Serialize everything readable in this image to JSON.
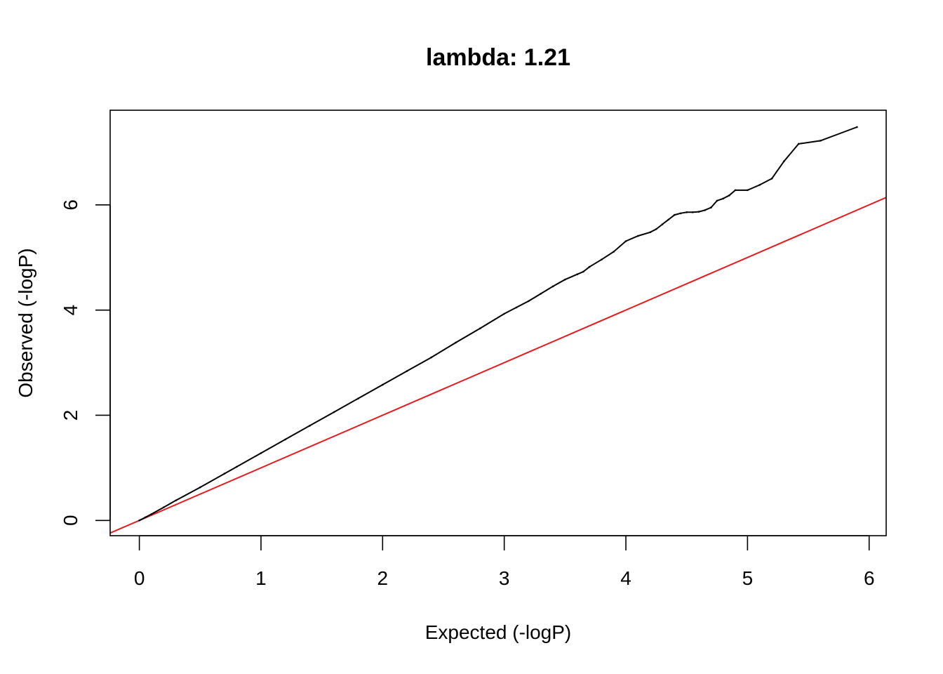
{
  "chart_data": {
    "type": "scatter",
    "title": "lambda: 1.21",
    "xlabel": "Expected (-logP)",
    "ylabel": "Observed (-logP)",
    "xlim": [
      -0.24,
      6.14
    ],
    "ylim": [
      -0.29,
      7.8
    ],
    "x_ticks": [
      0,
      1,
      2,
      3,
      4,
      5,
      6
    ],
    "y_ticks": [
      0,
      2,
      4,
      6
    ],
    "grid": false,
    "colors": {
      "points": "#000000",
      "reference_line": "#e41a1c",
      "frame": "#000000"
    },
    "reference_line": {
      "slope": 1,
      "intercept": 0
    },
    "series": [
      {
        "x": [
          0,
          0.05,
          0.1,
          0.2,
          0.3,
          0.5,
          0.7,
          0.8,
          1.0,
          1.2,
          1.4,
          1.6,
          1.8,
          2.0,
          2.2,
          2.4,
          2.6,
          2.8,
          3.0,
          3.1,
          3.2,
          3.3,
          3.4,
          3.5,
          3.6,
          3.65,
          3.7,
          3.8,
          3.9,
          4.0,
          4.1,
          4.2,
          4.25,
          4.3,
          4.35,
          4.4,
          4.45,
          4.5,
          4.55,
          4.6,
          4.65,
          4.7,
          4.75,
          4.8,
          4.85,
          4.9,
          5.0,
          5.1,
          5.2,
          5.3,
          5.42,
          5.6,
          5.9
        ],
        "y": [
          0,
          0.06,
          0.12,
          0.25,
          0.38,
          0.63,
          0.89,
          1.02,
          1.28,
          1.54,
          1.8,
          2.06,
          2.32,
          2.58,
          2.84,
          3.1,
          3.38,
          3.65,
          3.93,
          4.05,
          4.17,
          4.31,
          4.45,
          4.58,
          4.68,
          4.73,
          4.82,
          4.96,
          5.11,
          5.31,
          5.41,
          5.48,
          5.54,
          5.63,
          5.72,
          5.81,
          5.84,
          5.86,
          5.86,
          5.87,
          5.9,
          5.95,
          6.08,
          6.12,
          6.18,
          6.28,
          6.28,
          6.38,
          6.5,
          6.83,
          7.16,
          7.22,
          7.48
        ]
      }
    ]
  }
}
